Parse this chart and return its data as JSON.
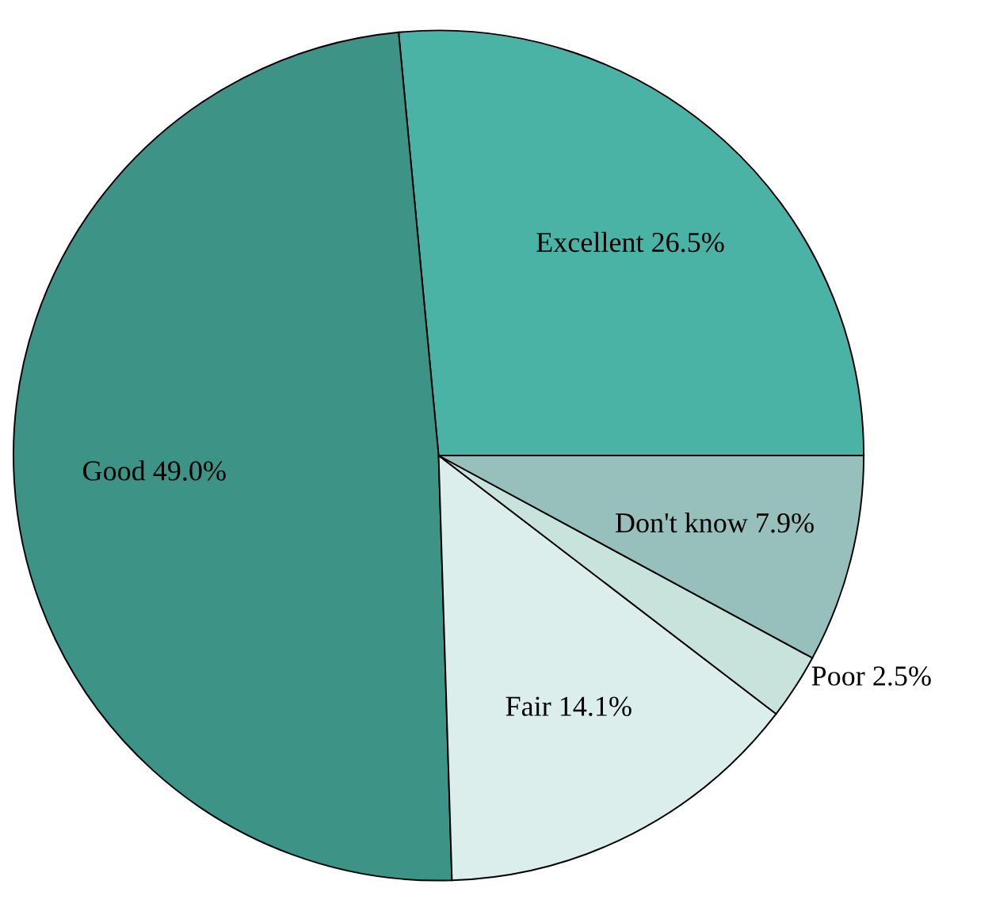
{
  "chart_data": {
    "type": "pie",
    "categories": [
      "Excellent",
      "Good",
      "Fair",
      "Poor",
      "Don't know"
    ],
    "values": [
      26.5,
      49.0,
      14.1,
      2.5,
      7.9
    ],
    "value_labels": [
      "26.5%",
      "49.0%",
      "14.1%",
      "2.5%",
      "7.9%"
    ],
    "colors": [
      "#4bb3a5",
      "#3d9486",
      "#dbeeec",
      "#c7e3dc",
      "#97c0bc"
    ],
    "legend": false
  }
}
